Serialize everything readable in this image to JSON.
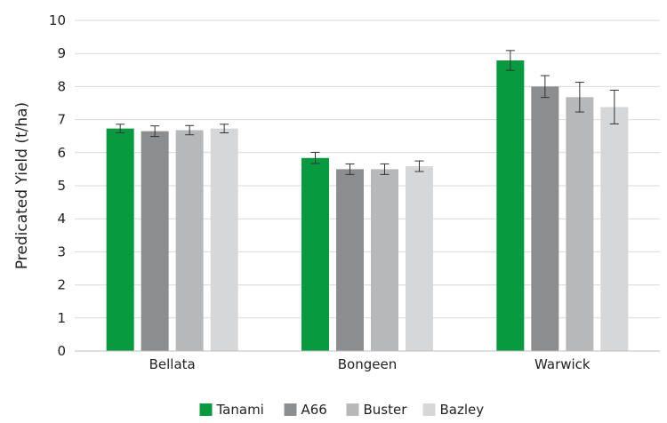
{
  "chart_data": {
    "type": "bar",
    "categories": [
      "Bellata",
      "Bongeen",
      "Warwick"
    ],
    "series": [
      {
        "name": "Tanami",
        "color": "#079a3e",
        "values": [
          6.73,
          5.84,
          8.79
        ],
        "errors": [
          0.13,
          0.17,
          0.3
        ]
      },
      {
        "name": "A66",
        "color": "#8c8d8f",
        "values": [
          6.65,
          5.5,
          8.0
        ],
        "errors": [
          0.16,
          0.16,
          0.33
        ]
      },
      {
        "name": "Buster",
        "color": "#b7b8ba",
        "values": [
          6.68,
          5.5,
          7.68
        ],
        "errors": [
          0.14,
          0.16,
          0.45
        ]
      },
      {
        "name": "Bazley",
        "color": "#d6d7d8",
        "values": [
          6.73,
          5.59,
          7.38
        ],
        "errors": [
          0.13,
          0.16,
          0.51
        ]
      }
    ],
    "title": "",
    "xlabel": "",
    "ylabel": "Predicated Yield (t/ha)",
    "ylim": [
      0,
      10
    ],
    "yticks": [
      "0",
      "1",
      "2",
      "3",
      "4",
      "5",
      "6",
      "7",
      "8",
      "9",
      "10"
    ],
    "grid": true,
    "legend": "bottom"
  }
}
